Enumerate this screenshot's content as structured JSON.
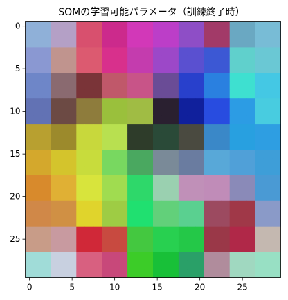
{
  "chart_data": {
    "type": "heatmap",
    "title": "SOMの学習可能パラメータ（訓練終了時）",
    "xlabel": "",
    "ylabel": "",
    "grid": false,
    "legend": "none",
    "rows": 30,
    "cols": 30,
    "xlim": [
      -0.5,
      29.5
    ],
    "ylim": [
      29.5,
      -0.5
    ],
    "x_ticks": [
      0,
      5,
      10,
      15,
      20,
      25
    ],
    "y_ticks": [
      0,
      5,
      10,
      15,
      20,
      25
    ],
    "region_grid": {
      "note_cells_per_region": 3,
      "colors": [
        [
          "#8fb0d8",
          "#b4a0c6",
          "#d8506e",
          "#cc2a8c",
          "#d238b8",
          "#bc3ec8",
          "#8e4ec6",
          "#a23a68",
          "#6aa8c2",
          "#78bcd6"
        ],
        [
          "#8a98d2",
          "#c0948e",
          "#dc5a70",
          "#d8308c",
          "#c43cae",
          "#9c48c8",
          "#5a50d0",
          "#3c58d4",
          "#60d0cc",
          "#6ac8d4"
        ],
        [
          "#6e86c8",
          "#8a6a70",
          "#7a3438",
          "#c0586a",
          "#c85488",
          "#6a4c96",
          "#2840cc",
          "#2a80e0",
          "#3ee0d0",
          "#44c8e4"
        ],
        [
          "#6272b4",
          "#6c4a44",
          "#8e7c3c",
          "#9ac03c",
          "#a0bc44",
          "#2a2030",
          "#10209c",
          "#284ce0",
          "#2c9ce4",
          "#48cce0"
        ],
        [
          "#b8a030",
          "#9c8a2c",
          "#c8d83c",
          "#b8e050",
          "#2e3c2a",
          "#2a4a38",
          "#4a4a40",
          "#3a88c8",
          "#28a0e0",
          "#2e9ee2"
        ],
        [
          "#d4a82c",
          "#d4c42c",
          "#c8dc3c",
          "#78d860",
          "#4aa860",
          "#7a8a98",
          "#6a7ca0",
          "#58a8d8",
          "#50a0d8",
          "#3e9ed8"
        ],
        [
          "#d88a2c",
          "#e0b034",
          "#d8e43c",
          "#a0dc50",
          "#2ed86a",
          "#9ad0b0",
          "#c090b8",
          "#c08cb8",
          "#8a8ab8",
          "#4a9ad4"
        ],
        [
          "#d08848",
          "#d09044",
          "#e0d42c",
          "#9ecc44",
          "#20e070",
          "#62d07a",
          "#5ad090",
          "#9c4a60",
          "#a03848",
          "#8a9ac8"
        ],
        [
          "#c89c88",
          "#c89aa0",
          "#d02838",
          "#c84a40",
          "#44c840",
          "#28d050",
          "#24c848",
          "#9a3848",
          "#b02848",
          "#c4b8b0"
        ],
        [
          "#a0dcd8",
          "#c8d0e0",
          "#d86080",
          "#c8487a",
          "#3ccc28",
          "#18c038",
          "#2aa068",
          "#b08c9c",
          "#a0d8c0",
          "#98e0c4"
        ]
      ]
    }
  }
}
